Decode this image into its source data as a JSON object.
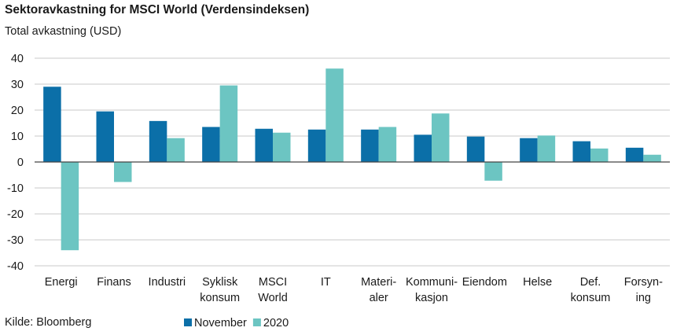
{
  "title": "Sektoravkastning for MSCI World (Verdensindeksen)",
  "subtitle": "Total avkastning (USD)",
  "source": "Kilde: Bloomberg",
  "colors": {
    "november": "#0b6fa8",
    "y2020": "#6cc5c2",
    "grid": "#c8c8c8",
    "axis": "#444444"
  },
  "chart_data": {
    "type": "bar",
    "title": "Sektoravkastning for MSCI World (Verdensindeksen)",
    "ylabel": "Total avkastning (USD)",
    "ylim": [
      -40,
      40
    ],
    "yticks": [
      40,
      30,
      20,
      10,
      0,
      -10,
      -20,
      -30,
      -40
    ],
    "grid": true,
    "legend": "bottom",
    "categories": [
      [
        "Energi"
      ],
      [
        "Finans"
      ],
      [
        "Industri"
      ],
      [
        "Syklisk",
        "konsum"
      ],
      [
        "MSCI",
        "World"
      ],
      [
        "IT"
      ],
      [
        "Materi-",
        "aler"
      ],
      [
        "Kommuni-",
        "kasjon"
      ],
      [
        "Eiendom"
      ],
      [
        "Helse"
      ],
      [
        "Def.",
        "konsum"
      ],
      [
        "Forsyn-",
        "ing"
      ]
    ],
    "series": [
      {
        "name": "November",
        "color": "#0b6fa8",
        "values": [
          29,
          19.5,
          15.8,
          13.5,
          12.8,
          12.5,
          12.5,
          10.5,
          9.8,
          9.2,
          8,
          5.5
        ]
      },
      {
        "name": "2020",
        "color": "#6cc5c2",
        "values": [
          -34,
          -7.7,
          9.2,
          29.5,
          11.3,
          36,
          13.5,
          18.7,
          -7.2,
          10.2,
          5.2,
          2.8
        ]
      }
    ]
  }
}
